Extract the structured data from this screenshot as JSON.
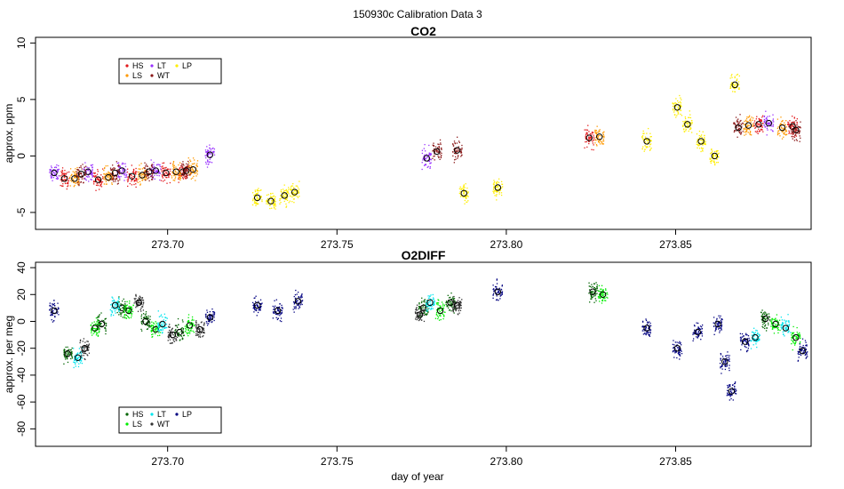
{
  "title": "150930c   Calibration Data 3",
  "xlabel": "day of year",
  "colors": {
    "HS": "#e31a1c",
    "LS": "#ff9900",
    "LT": "#9933ff",
    "WT": "#8b1a1a",
    "LP": "#ffee00",
    "O2_HS": "#006400",
    "O2_LS": "#00ee00",
    "O2_LT": "#00e5ee",
    "O2_WT": "#333333",
    "O2_LP": "#000080"
  },
  "chart_data": [
    {
      "type": "scatter",
      "title": "CO2",
      "ylabel": "approx. ppm",
      "xlim": [
        273.661,
        273.89
      ],
      "ylim": [
        -6.5,
        10.5
      ],
      "xticks": [
        "273.70",
        "273.75",
        "273.80",
        "273.85"
      ],
      "xtick_values": [
        273.7,
        273.75,
        273.8,
        273.85
      ],
      "yticks": [
        "-5",
        "0",
        "5",
        "10"
      ],
      "ytick_values": [
        -5,
        0,
        5,
        10
      ],
      "legend": {
        "position": "top-left",
        "entries": [
          "HS",
          "LS",
          "LT",
          "WT",
          "LP"
        ]
      },
      "series": [
        {
          "name": "HS",
          "x": [
            273.6695,
            273.6795,
            273.6895,
            273.6995,
            273.7045,
            273.8245,
            273.8745,
            273.8845
          ],
          "y": [
            -2.0,
            -2.1,
            -1.8,
            -1.5,
            -1.4,
            1.6,
            2.8,
            2.6
          ]
        },
        {
          "name": "LS",
          "x": [
            273.6725,
            273.6825,
            273.6925,
            273.7025,
            273.7075,
            273.8275,
            273.8715,
            273.8815
          ],
          "y": [
            -2.0,
            -1.9,
            -1.7,
            -1.4,
            -1.2,
            1.7,
            2.7,
            2.5
          ]
        },
        {
          "name": "LT",
          "x": [
            273.6665,
            273.6765,
            273.6865,
            273.6965,
            273.7125,
            273.7765,
            273.8775
          ],
          "y": [
            -1.5,
            -1.4,
            -1.3,
            -1.3,
            0.1,
            -0.2,
            2.9
          ]
        },
        {
          "name": "WT",
          "x": [
            273.6745,
            273.6845,
            273.6945,
            273.7055,
            273.7795,
            273.7855,
            273.8685,
            273.8855
          ],
          "y": [
            -1.6,
            -1.5,
            -1.4,
            -1.3,
            0.4,
            0.5,
            2.5,
            2.3
          ]
        },
        {
          "name": "LP",
          "x": [
            273.7265,
            273.7305,
            273.7345,
            273.7375,
            273.7875,
            273.7975,
            273.8415,
            273.8505,
            273.8535,
            273.8575,
            273.8615,
            273.8675
          ],
          "y": [
            -3.7,
            -4.0,
            -3.5,
            -3.2,
            -3.3,
            -2.8,
            1.3,
            4.3,
            2.8,
            1.3,
            0.0,
            6.3
          ]
        }
      ]
    },
    {
      "type": "scatter",
      "title": "O2DIFF",
      "ylabel": "approx. per meg",
      "xlabel": "day of year",
      "xlim": [
        273.661,
        273.89
      ],
      "ylim": [
        -93,
        44
      ],
      "xticks": [
        "273.70",
        "273.75",
        "273.80",
        "273.85"
      ],
      "xtick_values": [
        273.7,
        273.75,
        273.8,
        273.85
      ],
      "yticks": [
        "-80",
        "-60",
        "-40",
        "-20",
        "0",
        "20",
        "40"
      ],
      "ytick_values": [
        -80,
        -60,
        -40,
        -20,
        0,
        20,
        40
      ],
      "legend": {
        "position": "bottom-left",
        "entries": [
          "HS",
          "LS",
          "LT",
          "WT",
          "LP"
        ]
      },
      "series": [
        {
          "name": "HS",
          "x": [
            273.6705,
            273.6805,
            273.6865,
            273.6935,
            273.7035,
            273.7755,
            273.7835,
            273.8255,
            273.8765
          ],
          "y": [
            -24,
            -2,
            10,
            0,
            -8,
            10,
            14,
            22,
            2
          ]
        },
        {
          "name": "LS",
          "x": [
            273.6785,
            273.6885,
            273.6965,
            273.7065,
            273.7805,
            273.8285,
            273.8795,
            273.8855
          ],
          "y": [
            -5,
            8,
            -6,
            -3,
            8,
            20,
            -2,
            -12
          ]
        },
        {
          "name": "LT",
          "x": [
            273.6735,
            273.6845,
            273.6985,
            273.7775,
            273.8735,
            273.8825
          ],
          "y": [
            -27,
            12,
            -2,
            14,
            -12,
            -5
          ]
        },
        {
          "name": "WT",
          "x": [
            273.6755,
            273.6915,
            273.7015,
            273.7095,
            273.7745,
            273.7855
          ],
          "y": [
            -20,
            14,
            -10,
            -6,
            5,
            12
          ]
        },
        {
          "name": "LP",
          "x": [
            273.6665,
            273.7125,
            273.7265,
            273.7325,
            273.7385,
            273.7975,
            273.8415,
            273.8505,
            273.8565,
            273.8625,
            273.8645,
            273.8665,
            273.8705,
            273.8875
          ],
          "y": [
            8,
            3,
            12,
            8,
            15,
            22,
            -5,
            -20,
            -8,
            -2,
            -30,
            -52,
            -15,
            -22
          ]
        }
      ]
    }
  ]
}
